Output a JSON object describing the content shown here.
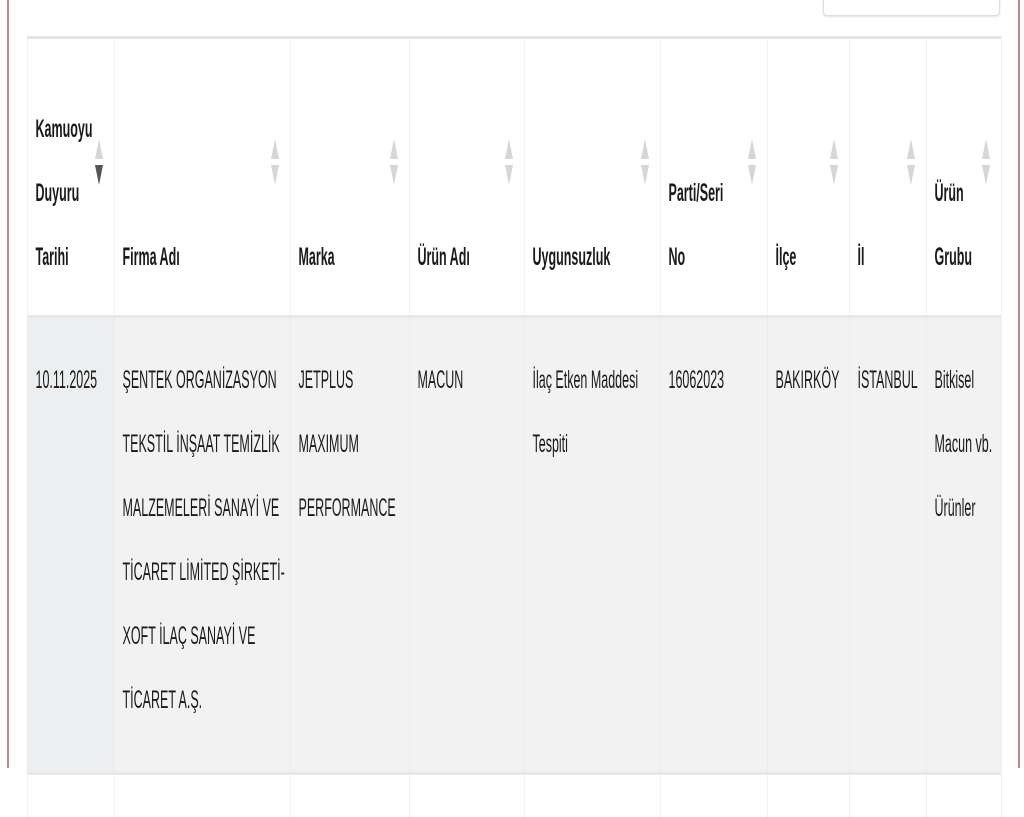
{
  "table": {
    "columns": [
      "Kamuoyu Duyuru Tarihi",
      "Firma Adı",
      "Marka",
      "Ürün Adı",
      "Uygunsuzluk",
      "Parti/Seri No",
      "İlçe",
      "İl",
      "Ürün Grubu"
    ],
    "sorted_column": "Kamuoyu Duyuru Tarihi",
    "sort_direction": "descending",
    "rows": [
      [
        "10.11.2025",
        "ŞENTEK ORGANİZASYON TEKSTİL İNŞAAT TEMİZLİK MALZEMELERİ SANAYİ VE TİCARET LİMİTED ŞİRKETİ-XOFT İLAÇ SANAYİ VE TİCARET A.Ş.",
        "JETPLUS MAXIMUM PERFORMANCE",
        "MACUN",
        "İlaç Etken Maddesi Tespiti",
        "16062023",
        "BAKIRKÖY",
        "İSTANBUL",
        "Bitkisel Macun vb. Ürünler"
      ]
    ]
  }
}
